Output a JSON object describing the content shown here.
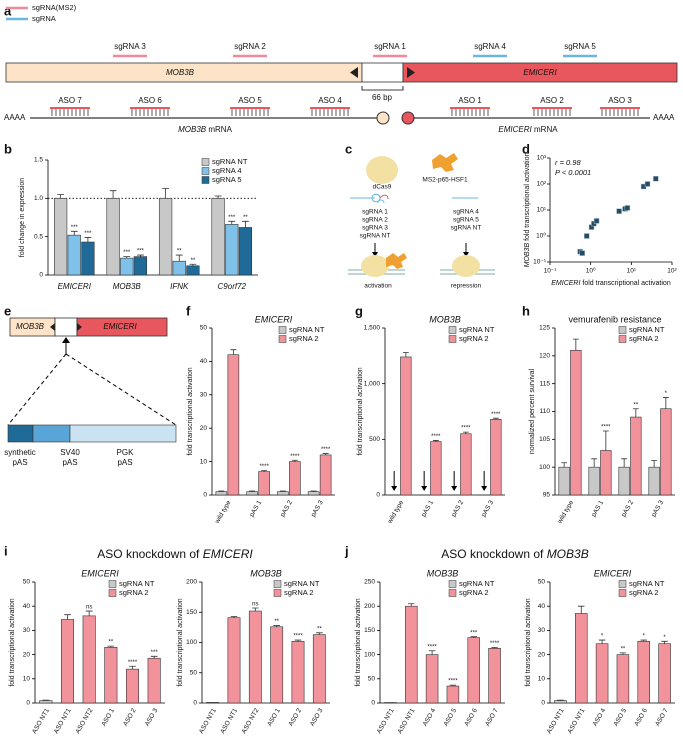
{
  "panel_labels": [
    "a",
    "b",
    "c",
    "d",
    "e",
    "f",
    "g",
    "h",
    "i",
    "j"
  ],
  "panel_a": {
    "legend": [
      {
        "label": "sgRNA(MS2)",
        "color": "#f08a99"
      },
      {
        "label": "sgRNA",
        "color": "#6cb6e0"
      }
    ],
    "guides": [
      {
        "label": "sgRNA 3",
        "color": "#f08a99"
      },
      {
        "label": "sgRNA 2",
        "color": "#f08a99"
      },
      {
        "label": "sgRNA 1",
        "color": "#f08a99"
      },
      {
        "label": "sgRNA 4",
        "color": "#6cb6e0"
      },
      {
        "label": "sgRNA 5",
        "color": "#6cb6e0"
      }
    ],
    "genes": [
      "MOB3B",
      "EMICERI"
    ],
    "gap": "66 bp",
    "polyA": [
      "AAAA",
      "AAAA"
    ],
    "asos_left": [
      "ASO 7",
      "ASO 6",
      "ASO 5",
      "ASO 4"
    ],
    "asos_right": [
      "ASO 1",
      "ASO 2",
      "ASO 3"
    ],
    "mrna": [
      {
        "gene": "MOB3B",
        "suffix": "mRNA"
      },
      {
        "gene": "EMICERI",
        "suffix": "mRNA"
      }
    ]
  },
  "panel_c": {
    "effector": [
      "dCas9",
      "MS2-p65-HSF1"
    ],
    "guides_left": [
      "sgRNA 1",
      "sgRNA 2",
      "sgRNA 3",
      "sgRNA NT"
    ],
    "guides_right": [
      "sgRNA 4",
      "sgRNA 5",
      "sgRNA NT"
    ],
    "outcomes": [
      "activation",
      "repression"
    ]
  },
  "panel_e": {
    "genes": [
      "MOB3B",
      "EMICERI"
    ],
    "segments": [
      {
        "lines": [
          "synthetic",
          "pAS"
        ],
        "color": "#1f6a96"
      },
      {
        "lines": [
          "SV40",
          "pAS"
        ],
        "color": "#5aa5d8"
      },
      {
        "lines": [
          "PGK",
          "pAS"
        ],
        "color": "#c9e3f3"
      }
    ]
  },
  "group_titles": [
    {
      "prefix": "ASO knockdown of",
      "gene": "EMICERI"
    },
    {
      "prefix": "ASO knockdown of",
      "gene": "MOB3B"
    }
  ],
  "chart_data": [
    {
      "type": "bar",
      "ylabel": "fold change in expression",
      "categories": [
        "EMICERI",
        "MOB3B",
        "IFNK",
        "C9orf72"
      ],
      "ylim": [
        0,
        1.5
      ],
      "yticks": [
        0,
        0.5,
        {
          "value": 1,
          "label": "1.0"
        },
        1.5
      ],
      "reference_line": 1,
      "legend": "top-right",
      "series": [
        {
          "name": "sgRNA NT",
          "color": "#c8c8c8",
          "values": [
            1,
            1,
            1,
            1
          ],
          "errors": [
            0.05,
            0.1,
            0.13,
            0.03
          ]
        },
        {
          "name": "sgRNA 4",
          "color": "#7fc1e8",
          "values": [
            0.52,
            0.22,
            0.18,
            0.66
          ],
          "errors": [
            0.05,
            0.02,
            0.08,
            0.04
          ],
          "significance": [
            "***",
            "***",
            "**",
            "***"
          ]
        },
        {
          "name": "sgRNA 5",
          "color": "#1f6a96",
          "values": [
            0.43,
            0.24,
            0.12,
            0.62
          ],
          "errors": [
            0.06,
            0.02,
            0.02,
            0.08
          ],
          "significance": [
            "***",
            "***",
            "**",
            "**"
          ]
        }
      ]
    },
    {
      "type": "scatter",
      "xlabel_gene": "EMICERI",
      "xlabel": "fold transcriptional activation",
      "ylabel_gene": "MOB3B",
      "ylabel": "fold transcriptional activation",
      "annotations": [
        "r = 0.98",
        "P < 0.0001"
      ],
      "xscale": "log",
      "yscale": "log",
      "color": "#2a4a5e",
      "xlim": [
        0.1,
        100
      ],
      "ylim": [
        0.1,
        1000
      ],
      "xticks": [
        {
          "value": 0.1,
          "label": "10⁻¹"
        },
        {
          "value": 1,
          "label": "10⁰"
        },
        {
          "value": 10,
          "label": "10¹"
        },
        {
          "value": 100,
          "label": "10²"
        }
      ],
      "yticks": [
        {
          "value": 0.1,
          "label": "10⁻¹"
        },
        {
          "value": 1,
          "label": "10⁰"
        },
        {
          "value": 10,
          "label": "10¹"
        },
        {
          "value": 100,
          "label": "10²"
        },
        {
          "value": 1000,
          "label": "10³"
        }
      ],
      "x": [
        0.55,
        0.62,
        0.8,
        1.05,
        1.2,
        1.4,
        5,
        7,
        8,
        20,
        25,
        40
      ],
      "y": [
        0.25,
        0.22,
        1,
        2.2,
        3,
        3.8,
        9,
        11,
        12,
        80,
        100,
        160
      ]
    },
    {
      "type": "bar",
      "title": "EMICERI",
      "ylabel": "fold transcriptional activation",
      "categories": [
        "wild type",
        "pAS 1",
        "pAS 2",
        "pAS 3"
      ],
      "ylim": [
        0,
        50
      ],
      "yticks": [
        0,
        10,
        20,
        30,
        40,
        50
      ],
      "legend": "top-right",
      "series": [
        {
          "name": "sgRNA NT",
          "color": "#c8c8c8",
          "values": [
            1,
            1,
            1,
            1
          ],
          "errors": [
            0.2,
            0.2,
            0.2,
            0.2
          ]
        },
        {
          "name": "sgRNA 2",
          "color": "#f2939c",
          "values": [
            42,
            7,
            10,
            12
          ],
          "errors": [
            1.5,
            0.3,
            0.4,
            0.4
          ],
          "significance": [
            null,
            "****",
            "****",
            "****"
          ]
        }
      ]
    },
    {
      "type": "bar",
      "title": "MOB3B",
      "ylabel": "fold transcriptional activation",
      "categories": [
        "wild type",
        "pAS 1",
        "pAS 2",
        "pAS 3"
      ],
      "ylim": [
        0,
        1500
      ],
      "yticks": [
        0,
        500,
        {
          "value": 1000,
          "label": "1,000"
        },
        {
          "value": 1500,
          "label": "1,500"
        }
      ],
      "legend": "top-right",
      "series": [
        {
          "name": "sgRNA NT",
          "color": "#c8c8c8",
          "values": [
            1,
            1,
            1,
            1
          ]
        },
        {
          "name": "sgRNA 2",
          "color": "#f2939c",
          "values": [
            1240,
            480,
            550,
            680
          ],
          "errors": [
            40,
            10,
            15,
            10
          ],
          "significance": [
            null,
            "****",
            "****",
            "****"
          ]
        }
      ]
    },
    {
      "type": "bar",
      "title": "vemurafenib resistance",
      "ylabel": "normalized percent survival",
      "categories": [
        "wild type",
        "pAS 1",
        "pAS 2",
        "pAS 3"
      ],
      "ylim": [
        95,
        125
      ],
      "yticks": [
        95,
        100,
        105,
        110,
        115,
        120,
        125
      ],
      "legend": "top-right",
      "series": [
        {
          "name": "sgRNA NT",
          "color": "#c8c8c8",
          "values": [
            100,
            100,
            100,
            100
          ],
          "errors": [
            0.8,
            1.5,
            1.5,
            1.2
          ]
        },
        {
          "name": "sgRNA 2",
          "color": "#f2939c",
          "values": [
            121,
            103,
            109,
            110.5
          ],
          "errors": [
            2,
            3.5,
            1.5,
            2
          ],
          "significance": [
            null,
            "****",
            "**",
            "*"
          ]
        }
      ]
    },
    {
      "type": "bar",
      "title": "EMICERI",
      "ylabel": "fold transcriptional activation",
      "categories": [
        "ASO NT1",
        "ASO NT1",
        "ASO NT2",
        "ASO 1",
        "ASO 2",
        "ASO 3"
      ],
      "ylim": [
        0,
        50
      ],
      "yticks": [
        0,
        10,
        20,
        30,
        40,
        50
      ],
      "legend": "top-right",
      "series": [
        {
          "name": "sgRNA NT",
          "color": "#c8c8c8",
          "values": [
            1,
            null,
            null,
            null,
            null,
            null
          ],
          "errors": [
            0.2,
            null,
            null,
            null,
            null,
            null
          ]
        },
        {
          "name": "sgRNA 2",
          "color": "#f2939c",
          "values": [
            null,
            34.5,
            36,
            23,
            14,
            18.5
          ],
          "errors": [
            null,
            2,
            2,
            0.5,
            1.2,
            0.8
          ],
          "significance": [
            null,
            null,
            "ns",
            "**",
            "****",
            "***"
          ]
        }
      ]
    },
    {
      "type": "bar",
      "title": "MOB3B",
      "ylabel": "fold transcriptional activation",
      "categories": [
        "ASO NT1",
        "ASO NT1",
        "ASO NT2",
        "ASO 1",
        "ASO 2",
        "ASO 3"
      ],
      "ylim": [
        0,
        200
      ],
      "yticks": [
        0,
        50,
        100,
        150,
        200
      ],
      "legend": "top-right",
      "series": [
        {
          "name": "sgRNA NT",
          "color": "#c8c8c8",
          "values": [
            1,
            null,
            null,
            null,
            null,
            null
          ]
        },
        {
          "name": "sgRNA 2",
          "color": "#f2939c",
          "values": [
            null,
            141,
            152,
            126,
            102,
            113
          ],
          "errors": [
            null,
            2,
            5,
            2,
            2,
            3
          ],
          "significance": [
            null,
            null,
            "ns",
            "**",
            "****",
            "**"
          ]
        }
      ]
    },
    {
      "type": "bar",
      "title": "MOB3B",
      "ylabel": "fold transcriptional activation",
      "categories": [
        "ASO NT1",
        "ASO NT1",
        "ASO 4",
        "ASO 5",
        "ASO 6",
        "ASO 7"
      ],
      "ylim": [
        0,
        250
      ],
      "yticks": [
        0,
        50,
        100,
        150,
        200,
        250
      ],
      "legend": "top-right",
      "series": [
        {
          "name": "sgRNA NT",
          "color": "#c8c8c8",
          "values": [
            1,
            null,
            null,
            null,
            null,
            null
          ]
        },
        {
          "name": "sgRNA 2",
          "color": "#f2939c",
          "values": [
            null,
            200,
            100,
            35,
            135,
            113
          ],
          "errors": [
            null,
            5,
            8,
            2,
            2,
            2
          ],
          "significance": [
            null,
            null,
            "****",
            "****",
            "***",
            "****"
          ]
        }
      ]
    },
    {
      "type": "bar",
      "title": "EMICERI",
      "ylabel": "fold transcriptional activation",
      "categories": [
        "ASO NT1",
        "ASO NT1",
        "ASO 4",
        "ASO 5",
        "ASO 6",
        "ASO 7"
      ],
      "ylim": [
        0,
        50
      ],
      "yticks": [
        0,
        10,
        20,
        30,
        40,
        50
      ],
      "legend": "top-right",
      "series": [
        {
          "name": "sgRNA NT",
          "color": "#c8c8c8",
          "values": [
            1,
            null,
            null,
            null,
            null,
            null
          ],
          "errors": [
            0.2,
            null,
            null,
            null,
            null,
            null
          ]
        },
        {
          "name": "sgRNA 2",
          "color": "#f2939c",
          "values": [
            null,
            37,
            24.5,
            20,
            25.5,
            24.5
          ],
          "errors": [
            null,
            3,
            1.5,
            0.7,
            0.5,
            1
          ],
          "significance": [
            null,
            null,
            "*",
            "**",
            "*",
            "*"
          ]
        }
      ]
    }
  ]
}
